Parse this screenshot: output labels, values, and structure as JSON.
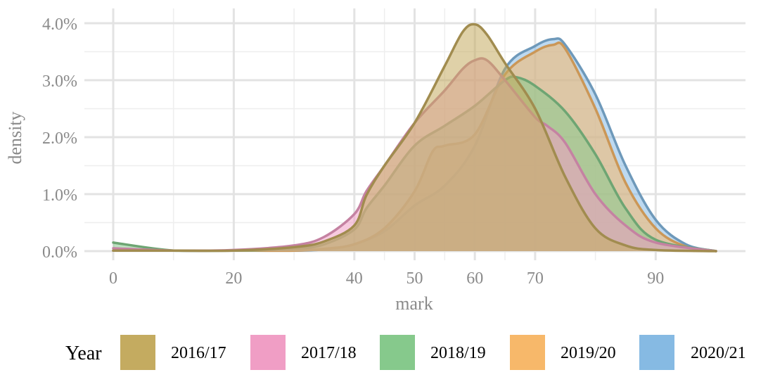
{
  "chart_data": {
    "type": "area",
    "subtype": "density",
    "xlabel": "mark",
    "ylabel": "density",
    "xlim": [
      -3,
      100
    ],
    "ylim": [
      0,
      0.042
    ],
    "x_ticks": [
      0,
      20,
      40,
      50,
      60,
      70,
      90
    ],
    "x_tick_labels": [
      "0",
      "20",
      "40",
      "50",
      "60",
      "70",
      "90"
    ],
    "y_ticks": [
      0,
      0.01,
      0.02,
      0.03,
      0.04
    ],
    "y_tick_labels": [
      "0.0%",
      "1.0%",
      "2.0%",
      "3.0%",
      "4.0%"
    ],
    "grid": true,
    "legend": {
      "title": "Year",
      "position": "bottom"
    },
    "series": [
      {
        "name": "2016/17",
        "color": "#C4AB60",
        "x": [
          0,
          10,
          20,
          30,
          35,
          40,
          42,
          45,
          50,
          55,
          58,
          60,
          62,
          65,
          70,
          75,
          80,
          85,
          90,
          100
        ],
        "y": [
          0.0001,
          0.0001,
          0.0001,
          0.0007,
          0.0017,
          0.0045,
          0.0098,
          0.015,
          0.0225,
          0.0325,
          0.0385,
          0.0398,
          0.038,
          0.033,
          0.025,
          0.013,
          0.004,
          0.001,
          0.0002,
          0
        ]
      },
      {
        "name": "2017/18",
        "color": "#F09EC5",
        "x": [
          0,
          10,
          20,
          30,
          35,
          40,
          42,
          45,
          50,
          55,
          58,
          60,
          62,
          65,
          70,
          72,
          75,
          80,
          85,
          90,
          100
        ],
        "y": [
          0.0005,
          0.0001,
          0.0002,
          0.001,
          0.0025,
          0.0065,
          0.0105,
          0.015,
          0.0225,
          0.0282,
          0.032,
          0.0335,
          0.0335,
          0.03,
          0.0235,
          0.022,
          0.019,
          0.01,
          0.0045,
          0.0015,
          0
        ]
      },
      {
        "name": "2018/19",
        "color": "#86C98C",
        "x": [
          0,
          10,
          20,
          30,
          35,
          40,
          42,
          45,
          50,
          55,
          60,
          65,
          67,
          70,
          75,
          80,
          85,
          90,
          100
        ],
        "y": [
          0.0015,
          0.0001,
          0.0001,
          0.0004,
          0.0012,
          0.0038,
          0.0075,
          0.0115,
          0.0185,
          0.022,
          0.0255,
          0.03,
          0.0305,
          0.029,
          0.0245,
          0.017,
          0.0075,
          0.002,
          0
        ]
      },
      {
        "name": "2019/20",
        "color": "#F7B86A",
        "x": [
          0,
          10,
          20,
          30,
          35,
          40,
          45,
          50,
          53,
          55,
          60,
          65,
          70,
          73,
          75,
          80,
          85,
          90,
          95,
          100
        ],
        "y": [
          0.0001,
          0.0001,
          0.0001,
          0.0001,
          0.0004,
          0.0012,
          0.004,
          0.0105,
          0.0175,
          0.0185,
          0.0205,
          0.031,
          0.035,
          0.0362,
          0.0355,
          0.025,
          0.012,
          0.004,
          0.0008,
          0
        ]
      },
      {
        "name": "2020/21",
        "color": "#86BAE3",
        "x": [
          0,
          10,
          20,
          30,
          35,
          40,
          45,
          50,
          55,
          60,
          65,
          70,
          73,
          75,
          80,
          85,
          90,
          95,
          100
        ],
        "y": [
          0.0001,
          0.0001,
          0.0001,
          0.0001,
          0.0003,
          0.0012,
          0.0035,
          0.008,
          0.0115,
          0.0185,
          0.032,
          0.036,
          0.0372,
          0.0362,
          0.0275,
          0.015,
          0.0055,
          0.0012,
          0
        ]
      }
    ]
  }
}
